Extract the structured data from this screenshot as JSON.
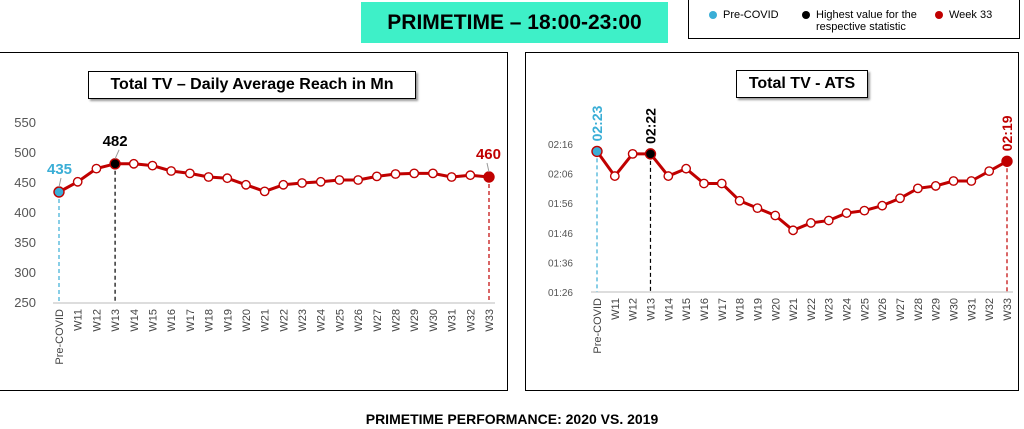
{
  "banner": "PRIMETIME – 18:00-23:00",
  "legend": {
    "items": [
      {
        "label": "Pre-COVID",
        "color": "#3aaed6"
      },
      {
        "label": "Highest value for the respective statistic",
        "color": "#000000"
      },
      {
        "label": "Week 33",
        "color": "#c00000"
      }
    ]
  },
  "footer": "PRIMETIME PERFORMANCE: 2020 VS. 2019",
  "colors": {
    "line": "#c00000",
    "precovid": "#3aaed6",
    "highest": "#000000",
    "week33": "#c00000"
  },
  "chart_data": [
    {
      "type": "line",
      "title": "Total TV – Daily Average Reach in Mn",
      "categories": [
        "Pre-COVID",
        "W11",
        "W12",
        "W13",
        "W14",
        "W15",
        "W16",
        "W17",
        "W18",
        "W19",
        "W20",
        "W21",
        "W22",
        "W23",
        "W24",
        "W25",
        "W26",
        "W27",
        "W28",
        "W29",
        "W30",
        "W31",
        "W32",
        "W33"
      ],
      "values": [
        435,
        452,
        474,
        482,
        482,
        479,
        470,
        466,
        460,
        458,
        447,
        436,
        447,
        450,
        452,
        455,
        455,
        461,
        465,
        466,
        466,
        460,
        463,
        460
      ],
      "yticks": [
        "550",
        "500",
        "450",
        "400",
        "350",
        "300",
        "250"
      ],
      "ylim": [
        250,
        550
      ],
      "annotations": [
        {
          "index": 0,
          "text": "435",
          "kind": "precovid"
        },
        {
          "index": 3,
          "text": "482",
          "kind": "highest"
        },
        {
          "index": 23,
          "text": "460",
          "kind": "week33"
        }
      ]
    },
    {
      "type": "line",
      "title": "Total TV - ATS",
      "categories": [
        "Pre-COVID",
        "W11",
        "W12",
        "W13",
        "W14",
        "W15",
        "W16",
        "W17",
        "W18",
        "W19",
        "W20",
        "W21",
        "W22",
        "W23",
        "W24",
        "W25",
        "W26",
        "W27",
        "W28",
        "W29",
        "W30",
        "W31",
        "W32",
        "W33"
      ],
      "values": [
        143,
        133,
        142,
        142,
        133,
        136,
        130,
        130,
        123,
        120,
        117,
        111,
        114,
        115,
        118,
        119,
        121,
        124,
        128,
        129,
        131,
        131,
        135,
        139
      ],
      "yticks": [
        "02:16",
        "02:06",
        "01:56",
        "01:46",
        "01:36",
        "01:26"
      ],
      "ylim": [
        86,
        146
      ],
      "annotations": [
        {
          "index": 0,
          "text": "02:23",
          "kind": "precovid"
        },
        {
          "index": 3,
          "text": "02:22",
          "kind": "highest"
        },
        {
          "index": 23,
          "text": "02:19",
          "kind": "week33"
        }
      ]
    }
  ]
}
